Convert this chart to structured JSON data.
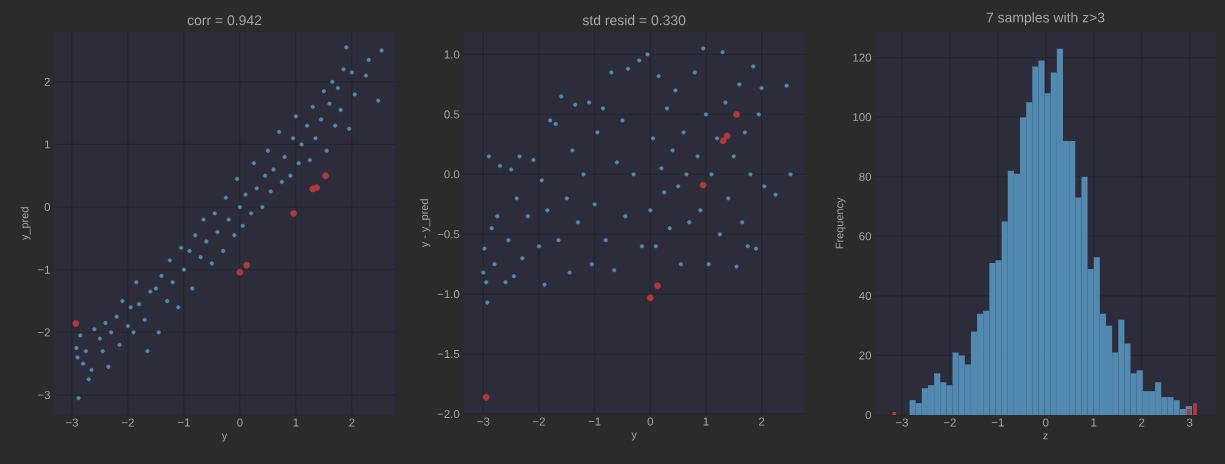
{
  "chart_data": [
    {
      "type": "scatter",
      "title": "corr = 0.942",
      "xlabel": "y",
      "ylabel": "y_pred",
      "grid": true,
      "marker": "circle",
      "xlim": [
        -3.32,
        2.77
      ],
      "ylim": [
        -3.32,
        2.8
      ],
      "xticks": [
        {
          "value": -3,
          "label": "−3"
        },
        {
          "value": -2,
          "label": "−2"
        },
        {
          "value": -1,
          "label": "−1"
        },
        0,
        1,
        2
      ],
      "yticks": [
        {
          "value": -3,
          "label": "−3"
        },
        {
          "value": -2,
          "label": "−2"
        },
        {
          "value": -1,
          "label": "−1"
        },
        0,
        1,
        2
      ],
      "series": [
        {
          "color": "#5289b0",
          "x": [
            -2.92,
            -2.9,
            -2.88,
            -2.85,
            -2.8,
            -2.75,
            -2.7,
            -2.65,
            -2.6,
            -2.5,
            -2.45,
            -2.4,
            -2.35,
            -2.3,
            -2.2,
            -2.15,
            -2.1,
            -2.0,
            -1.95,
            -1.9,
            -1.85,
            -1.8,
            -1.7,
            -1.65,
            -1.6,
            -1.5,
            -1.45,
            -1.4,
            -1.3,
            -1.25,
            -1.2,
            -1.1,
            -1.05,
            -1.0,
            -0.9,
            -0.85,
            -0.8,
            -0.7,
            -0.65,
            -0.6,
            -0.5,
            -0.45,
            -0.4,
            -0.3,
            -0.25,
            -0.2,
            -0.1,
            -0.05,
            0.0,
            0.05,
            0.1,
            0.2,
            0.25,
            0.3,
            0.4,
            0.45,
            0.5,
            0.55,
            0.6,
            0.7,
            0.75,
            0.8,
            0.9,
            0.95,
            1.0,
            1.05,
            1.1,
            1.2,
            1.25,
            1.3,
            1.35,
            1.45,
            1.5,
            1.55,
            1.6,
            1.65,
            1.7,
            1.75,
            1.8,
            1.85,
            1.9,
            1.95,
            2.0,
            2.05,
            2.25,
            2.3,
            2.47,
            2.53
          ],
          "values": [
            -2.25,
            -2.4,
            -3.05,
            -2.05,
            -2.5,
            -2.3,
            -2.75,
            -2.6,
            -1.95,
            -2.1,
            -2.3,
            -1.85,
            -2.55,
            -2.0,
            -1.75,
            -2.2,
            -1.5,
            -1.9,
            -1.6,
            -2.0,
            -1.2,
            -1.55,
            -1.8,
            -2.3,
            -1.35,
            -1.3,
            -2.0,
            -1.1,
            -1.5,
            -0.85,
            -1.2,
            -1.6,
            -0.65,
            -1.0,
            -0.7,
            -1.3,
            -0.45,
            -0.8,
            -0.2,
            -0.55,
            -0.9,
            -0.1,
            -0.4,
            -0.7,
            0.15,
            -0.2,
            -0.45,
            0.45,
            0.0,
            -0.3,
            0.2,
            -0.1,
            0.7,
            0.3,
            0.0,
            0.5,
            0.9,
            0.25,
            0.6,
            1.2,
            0.4,
            0.8,
            0.5,
            1.1,
            1.45,
            0.7,
            1.0,
            1.3,
            0.75,
            1.6,
            1.1,
            1.4,
            1.85,
            0.9,
            1.65,
            2.0,
            1.3,
            1.9,
            1.55,
            2.2,
            2.55,
            1.25,
            2.15,
            1.8,
            2.1,
            2.35,
            1.7,
            2.5
          ]
        },
        {
          "color": "#b03a3a",
          "x": [
            -2.93,
            0.0,
            0.12,
            0.96,
            1.3,
            1.37,
            1.53
          ],
          "values": [
            -1.86,
            -1.04,
            -0.93,
            -0.1,
            0.29,
            0.31,
            0.5
          ]
        }
      ]
    },
    {
      "type": "scatter",
      "title": "std resid = 0.330",
      "xlabel": "y",
      "ylabel": "y - y_pred",
      "grid": true,
      "marker": "circle",
      "xlim": [
        -3.36,
        2.78
      ],
      "ylim": [
        -2.0,
        1.19
      ],
      "xticks": [
        {
          "value": -3,
          "label": "−3"
        },
        {
          "value": -2,
          "label": "−2"
        },
        {
          "value": -1,
          "label": "−1"
        },
        0,
        1,
        2
      ],
      "yticks": [
        {
          "value": -2,
          "label": "−2.0"
        },
        {
          "value": -1.5,
          "label": "−1.5"
        },
        {
          "value": -1,
          "label": "−1.0"
        },
        {
          "value": -0.5,
          "label": "−0.5"
        },
        {
          "value": 0,
          "label": "0.0"
        },
        0.5,
        {
          "value": 1,
          "label": "1.0"
        }
      ],
      "series": [
        {
          "color": "#5289b0",
          "x": [
            -3.0,
            -2.98,
            -2.95,
            -2.93,
            -2.9,
            -2.85,
            -2.8,
            -2.75,
            -2.7,
            -2.6,
            -2.55,
            -2.5,
            -2.45,
            -2.4,
            -2.35,
            -2.3,
            -2.2,
            -2.1,
            -2.0,
            -1.95,
            -1.9,
            -1.85,
            -1.8,
            -1.7,
            -1.65,
            -1.6,
            -1.5,
            -1.45,
            -1.4,
            -1.35,
            -1.3,
            -1.2,
            -1.1,
            -1.05,
            -1.0,
            -0.95,
            -0.85,
            -0.8,
            -0.7,
            -0.65,
            -0.6,
            -0.5,
            -0.45,
            -0.4,
            -0.3,
            -0.2,
            -0.15,
            -0.05,
            0.0,
            0.05,
            0.1,
            0.15,
            0.2,
            0.25,
            0.3,
            0.35,
            0.4,
            0.45,
            0.5,
            0.55,
            0.6,
            0.65,
            0.7,
            0.8,
            0.85,
            0.9,
            0.95,
            1.0,
            1.05,
            1.1,
            1.2,
            1.25,
            1.3,
            1.35,
            1.4,
            1.5,
            1.55,
            1.6,
            1.65,
            1.7,
            1.75,
            1.8,
            1.85,
            1.9,
            1.95,
            2.0,
            2.05,
            2.25,
            2.45,
            2.52
          ],
          "values": [
            -0.82,
            -0.62,
            -0.9,
            -1.07,
            0.15,
            -0.45,
            -0.75,
            -0.35,
            0.07,
            -0.9,
            -0.55,
            0.04,
            -0.85,
            -0.2,
            0.15,
            -0.7,
            -0.35,
            0.12,
            -0.6,
            -0.05,
            -0.92,
            -0.3,
            0.45,
            0.42,
            -0.55,
            0.65,
            -0.2,
            -0.82,
            0.2,
            0.58,
            -0.4,
            0.0,
            0.6,
            -0.75,
            -0.25,
            0.35,
            0.55,
            -0.55,
            0.85,
            -0.8,
            0.1,
            0.45,
            -0.35,
            0.88,
            0.0,
            0.95,
            -0.6,
            1.0,
            -0.3,
            0.3,
            -0.6,
            0.82,
            0.05,
            -0.15,
            0.55,
            -0.45,
            0.2,
            0.7,
            -0.1,
            -0.75,
            0.35,
            0.0,
            -0.4,
            0.85,
            0.15,
            -0.3,
            1.05,
            0.5,
            -0.75,
            0.0,
            0.3,
            -0.5,
            1.02,
            0.6,
            -0.2,
            0.15,
            -0.77,
            0.75,
            -0.4,
            0.35,
            -0.6,
            0.0,
            0.9,
            -0.62,
            0.5,
            0.72,
            -0.1,
            -0.17,
            0.74,
            0.0
          ]
        },
        {
          "color": "#b03a3a",
          "x": [
            -2.95,
            0.0,
            0.13,
            0.95,
            1.31,
            1.38,
            1.55
          ],
          "values": [
            -1.86,
            -1.03,
            -0.93,
            -0.09,
            0.28,
            0.32,
            0.5
          ]
        }
      ]
    },
    {
      "type": "histogram",
      "title": "7 samples with z>3",
      "xlabel": "z",
      "ylabel": "Frequency",
      "grid": true,
      "xlim": [
        -3.56,
        3.55
      ],
      "ylim": [
        0,
        128.7
      ],
      "xticks": [
        {
          "value": -3,
          "label": "−3"
        },
        {
          "value": -2,
          "label": "−2"
        },
        {
          "value": -1,
          "label": "−1"
        },
        0,
        1,
        2,
        3
      ],
      "yticks": [
        0,
        20,
        40,
        60,
        80,
        100,
        120
      ],
      "bins": [
        -3.224,
        -3.096,
        -2.968,
        -2.84,
        -2.712,
        -2.584,
        -2.456,
        -2.328,
        -2.2,
        -2.072,
        -1.944,
        -1.816,
        -1.688,
        -1.56,
        -1.432,
        -1.304,
        -1.176,
        -1.048,
        -0.92,
        -0.792,
        -0.664,
        -0.536,
        -0.408,
        -0.28,
        -0.152,
        -0.024,
        0.104,
        0.232,
        0.36,
        0.488,
        0.616,
        0.744,
        0.872,
        1.0,
        1.128,
        1.256,
        1.384,
        1.512,
        1.64,
        1.768,
        1.896,
        2.024,
        2.152,
        2.28,
        2.408,
        2.536,
        2.664,
        2.792,
        2.92,
        3.048,
        3.176
      ],
      "series": [
        {
          "color": "#5289b0",
          "values": [
            null,
            null,
            null,
            5,
            4,
            9,
            10,
            14,
            11,
            10,
            21,
            20,
            17,
            28,
            34,
            35,
            51,
            52,
            65,
            82,
            81,
            100,
            105,
            117,
            119,
            108,
            115,
            123,
            92,
            92,
            73,
            80,
            49,
            53,
            34,
            30,
            21,
            32,
            24,
            14,
            15,
            8,
            8,
            11,
            6,
            6,
            5,
            2,
            3,
            null
          ]
        },
        {
          "color": "#b03a3a",
          "values": [
            1,
            null,
            null,
            null,
            null,
            null,
            null,
            null,
            null,
            null,
            null,
            null,
            null,
            null,
            null,
            null,
            null,
            null,
            null,
            null,
            null,
            null,
            null,
            null,
            null,
            null,
            null,
            null,
            null,
            null,
            null,
            null,
            null,
            null,
            null,
            null,
            null,
            null,
            null,
            null,
            null,
            null,
            null,
            null,
            null,
            null,
            null,
            null,
            2,
            4
          ]
        }
      ]
    }
  ]
}
